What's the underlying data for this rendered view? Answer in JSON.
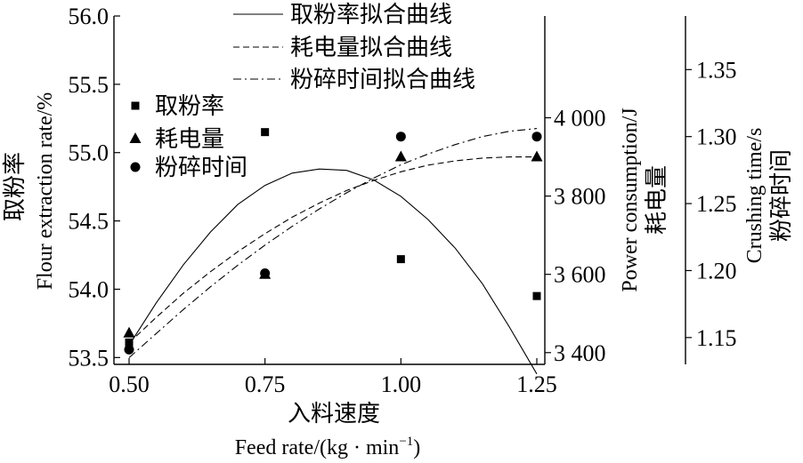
{
  "chart_data": {
    "type": "scatter",
    "x_axis": {
      "label_cn": "入料速度",
      "label_en": "Feed rate/(kg · min",
      "label_en_sup": "−1",
      "label_en_end": ")",
      "range": [
        0.5,
        1.25
      ],
      "ticks": [
        0.5,
        0.75,
        1.0,
        1.25
      ],
      "tick_labels": [
        "0.50",
        "0.75",
        "1.00",
        "1.25"
      ]
    },
    "y_axes": [
      {
        "id": "left",
        "label_cn": "取粉率",
        "label_en": "Flour extraction rate/%",
        "range": [
          53.45,
          56.0
        ],
        "ticks": [
          53.5,
          54.0,
          54.5,
          55.0,
          55.5,
          56.0
        ],
        "tick_labels": [
          "53.5",
          "54.0",
          "54.5",
          "55.0",
          "55.5",
          "56.0"
        ]
      },
      {
        "id": "right1",
        "label_en": "Power consumption/J",
        "label_cn": "耗电量",
        "range": [
          3370,
          4260
        ],
        "ticks": [
          3400,
          3600,
          3800,
          4000
        ],
        "tick_labels": [
          "3 400",
          "3 600",
          "3 800",
          "4 000"
        ]
      },
      {
        "id": "right2",
        "label_en": "Crushing time/s",
        "label_cn": "粉碎时间",
        "range": [
          1.13,
          1.39
        ],
        "ticks": [
          1.15,
          1.2,
          1.25,
          1.3,
          1.35
        ],
        "tick_labels": [
          "1.15",
          "1.20",
          "1.25",
          "1.30",
          "1.35"
        ]
      }
    ],
    "series": [
      {
        "name": "取粉率",
        "axis": "left",
        "marker": "square",
        "x": [
          0.5,
          0.75,
          1.0,
          1.25
        ],
        "y": [
          53.61,
          55.15,
          54.22,
          53.95
        ]
      },
      {
        "name": "耗电量",
        "axis": "right1",
        "marker": "triangle",
        "x": [
          0.5,
          0.75,
          1.0,
          1.25
        ],
        "y": [
          3450,
          3600,
          3900,
          3900
        ]
      },
      {
        "name": "粉碎时间",
        "axis": "right2",
        "marker": "circle",
        "x": [
          0.5,
          0.75,
          1.0,
          1.25
        ],
        "y": [
          1.141,
          1.198,
          1.3,
          1.3
        ]
      }
    ],
    "fits": [
      {
        "name": "取粉率拟合曲线",
        "axis": "left",
        "style": "solid",
        "x": [
          0.5,
          0.55,
          0.6,
          0.65,
          0.7,
          0.75,
          0.8,
          0.85,
          0.9,
          0.95,
          1.0,
          1.05,
          1.1,
          1.15,
          1.2,
          1.25
        ],
        "y": [
          53.59,
          53.9,
          54.18,
          54.42,
          54.62,
          54.76,
          54.85,
          54.88,
          54.87,
          54.8,
          54.68,
          54.51,
          54.3,
          54.04,
          53.72,
          53.38
        ]
      },
      {
        "name": "耗电量拟合曲线",
        "axis": "right1",
        "style": "dashed",
        "x": [
          0.5,
          0.55,
          0.6,
          0.65,
          0.7,
          0.75,
          0.8,
          0.85,
          0.9,
          0.95,
          1.0,
          1.05,
          1.1,
          1.15,
          1.2,
          1.25
        ],
        "y": [
          3425,
          3490,
          3552,
          3607,
          3658,
          3704,
          3746,
          3782,
          3814,
          3840,
          3862,
          3879,
          3890,
          3897,
          3900,
          3900
        ]
      },
      {
        "name": "粉碎时间拟合曲线",
        "axis": "right2",
        "style": "dashdot",
        "x": [
          0.5,
          0.55,
          0.6,
          0.65,
          0.7,
          0.75,
          0.8,
          0.85,
          0.9,
          0.95,
          1.0,
          1.05,
          1.1,
          1.15,
          1.2,
          1.25
        ],
        "y": [
          1.135,
          1.153,
          1.171,
          1.188,
          1.204,
          1.219,
          1.233,
          1.246,
          1.258,
          1.269,
          1.279,
          1.287,
          1.294,
          1.3,
          1.304,
          1.306
        ]
      }
    ],
    "legend": {
      "lines": [
        {
          "label": "取粉率拟合曲线",
          "style": "solid"
        },
        {
          "label": "耗电量拟合曲线",
          "style": "dashed"
        },
        {
          "label": "粉碎时间拟合曲线",
          "style": "dashdot"
        }
      ],
      "markers": [
        {
          "label": "取粉率",
          "marker": "square"
        },
        {
          "label": "耗电量",
          "marker": "triangle"
        },
        {
          "label": "粉碎时间",
          "marker": "circle"
        }
      ]
    },
    "grid": false
  }
}
